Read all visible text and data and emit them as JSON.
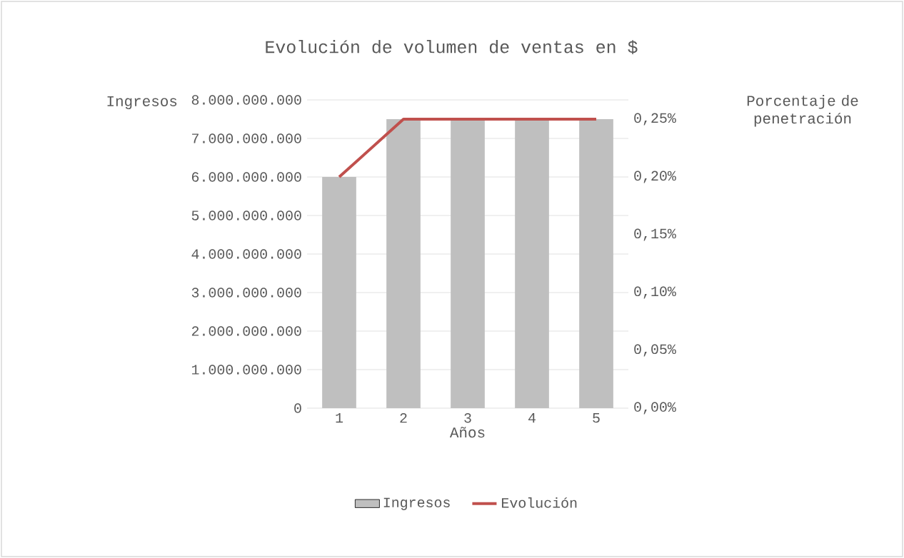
{
  "chart_data": {
    "type": "bar",
    "title": "Evolución de volumen de ventas en $",
    "xlabel": "Años",
    "ylabel": "Ingresos",
    "y2label": "Porcentaje de penetración",
    "categories": [
      "1",
      "2",
      "3",
      "4",
      "5"
    ],
    "series": [
      {
        "name": "Ingresos",
        "color": "#bfbfbf",
        "values": [
          6000000000,
          7500000000,
          7500000000,
          7500000000,
          7500000000
        ]
      },
      {
        "name": "Evolución",
        "type": "line",
        "axis": "y2",
        "color": "#c0504d",
        "values": [
          0.2,
          0.25,
          0.25,
          0.25,
          0.25
        ]
      }
    ],
    "ylim": [
      0,
      8000000000
    ],
    "yticks": [
      {
        "value": 0,
        "label": "0"
      },
      {
        "value": 1000000000,
        "label": "1.000.000.000"
      },
      {
        "value": 2000000000,
        "label": "2.000.000.000"
      },
      {
        "value": 3000000000,
        "label": "3.000.000.000"
      },
      {
        "value": 4000000000,
        "label": "4.000.000.000"
      },
      {
        "value": 5000000000,
        "label": "5.000.000.000"
      },
      {
        "value": 6000000000,
        "label": "6.000.000.000"
      },
      {
        "value": 7000000000,
        "label": "7.000.000.000"
      },
      {
        "value": 8000000000,
        "label": "8.000.000.000"
      }
    ],
    "y2lim": [
      0,
      0.2667
    ],
    "y2ticks": [
      {
        "value": 0,
        "label": "0,00%"
      },
      {
        "value": 0.05,
        "label": "0,05%"
      },
      {
        "value": 0.1,
        "label": "0,10%"
      },
      {
        "value": 0.15,
        "label": "0,15%"
      },
      {
        "value": 0.2,
        "label": "0,20%"
      },
      {
        "value": 0.25,
        "label": "0,25%"
      }
    ],
    "grid": "y",
    "legend": "bottom",
    "marker": "none"
  }
}
